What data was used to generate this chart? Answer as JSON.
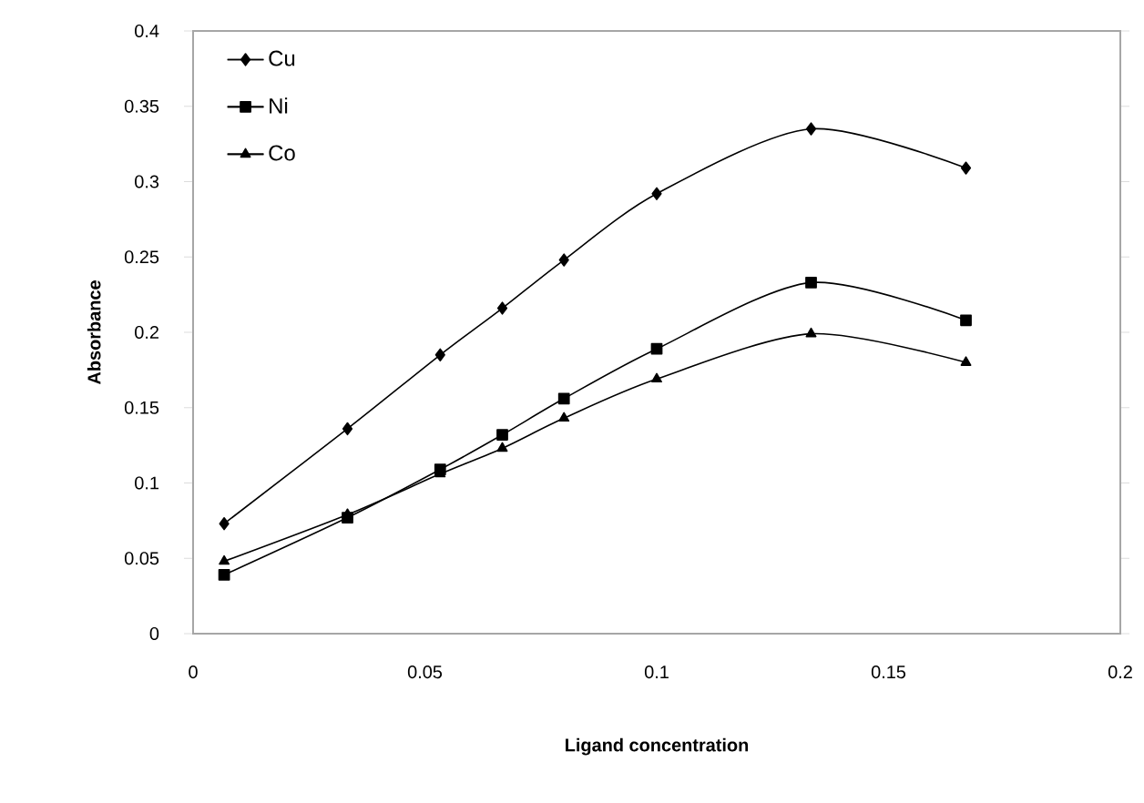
{
  "chart_data": {
    "type": "line",
    "xlabel": "Ligand concentration",
    "ylabel": "Absorbance",
    "xlim": [
      0,
      0.2
    ],
    "xticks": [
      0,
      0.05,
      0.1,
      0.15,
      0.2
    ],
    "ylim": [
      0,
      0.4
    ],
    "yticks": [
      0,
      0.05,
      0.1,
      0.15,
      0.2,
      0.25,
      0.3,
      0.35,
      0.4
    ],
    "x": [
      0.0067,
      0.0333,
      0.0533,
      0.0667,
      0.08,
      0.1,
      0.1333,
      0.1667
    ],
    "grid": false,
    "legend": "top left",
    "series": [
      {
        "name": "Cu",
        "color": "#000000",
        "marker": "diamond",
        "values": [
          0.073,
          0.136,
          0.185,
          0.216,
          0.248,
          0.292,
          0.335,
          0.309
        ]
      },
      {
        "name": "Ni",
        "color": "#000000",
        "marker": "square",
        "values": [
          0.039,
          0.077,
          0.109,
          0.132,
          0.156,
          0.189,
          0.233,
          0.208
        ]
      },
      {
        "name": "Co",
        "color": "#000000",
        "marker": "triangle",
        "values": [
          0.048,
          0.079,
          0.106,
          0.123,
          0.143,
          0.169,
          0.199,
          0.18
        ]
      }
    ]
  }
}
